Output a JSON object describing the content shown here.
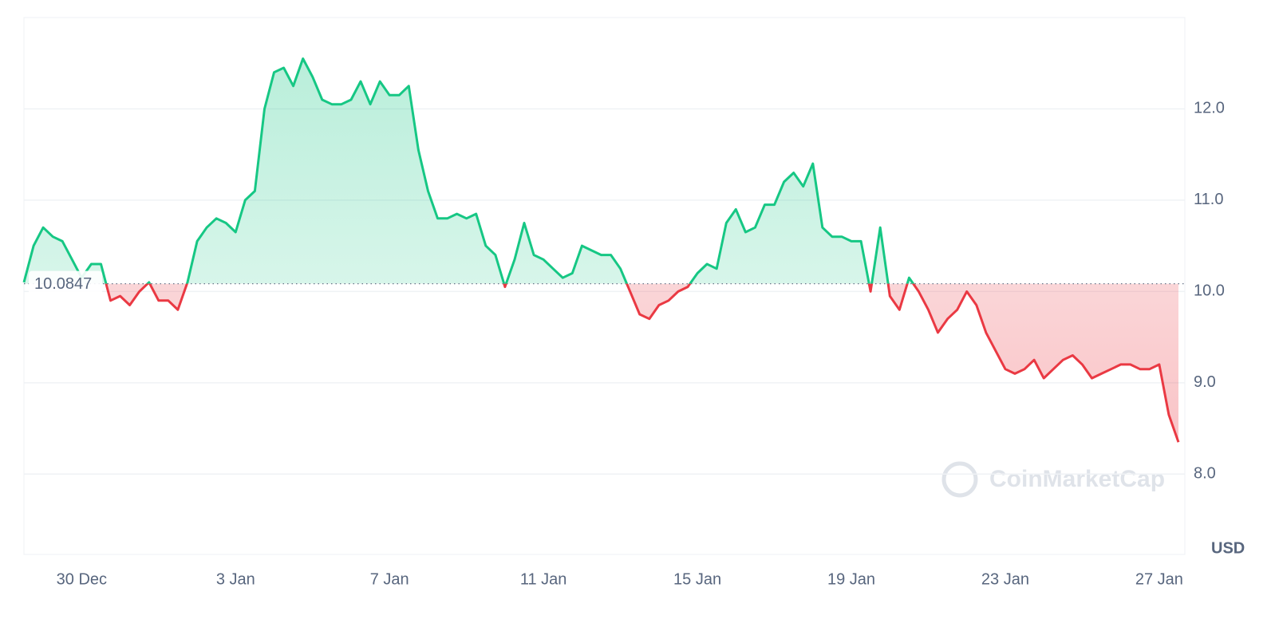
{
  "chart_data": {
    "type": "line",
    "categories": [
      null,
      null,
      null,
      null,
      null,
      null,
      "30 Dec",
      null,
      null,
      null,
      null,
      null,
      null,
      null,
      null,
      null,
      null,
      null,
      null,
      null,
      null,
      null,
      "3 Jan",
      null,
      null,
      null,
      null,
      null,
      null,
      null,
      null,
      null,
      null,
      null,
      null,
      null,
      null,
      null,
      "7 Jan",
      null,
      null,
      null,
      null,
      null,
      null,
      null,
      null,
      null,
      null,
      null,
      null,
      null,
      null,
      null,
      "11 Jan",
      null,
      null,
      null,
      null,
      null,
      null,
      null,
      null,
      null,
      null,
      null,
      null,
      null,
      null,
      null,
      "15 Jan",
      null,
      null,
      null,
      null,
      null,
      null,
      null,
      null,
      null,
      null,
      null,
      null,
      null,
      null,
      null,
      "19 Jan",
      null,
      null,
      null,
      null,
      null,
      null,
      null,
      null,
      null,
      null,
      null,
      null,
      null,
      null,
      null,
      "23 Jan",
      null,
      null,
      null,
      null,
      null,
      null,
      null,
      null,
      null,
      null,
      null,
      null,
      null,
      null,
      null,
      "27 Jan",
      null,
      null
    ],
    "values": [
      10.1,
      10.5,
      10.7,
      10.6,
      10.55,
      10.35,
      10.15,
      10.3,
      10.3,
      9.9,
      9.95,
      9.85,
      10.0,
      10.1,
      9.9,
      9.9,
      9.8,
      10.1,
      10.55,
      10.7,
      10.8,
      10.75,
      10.65,
      11.0,
      11.1,
      12.0,
      12.4,
      12.45,
      12.25,
      12.55,
      12.35,
      12.1,
      12.05,
      12.05,
      12.1,
      12.3,
      12.05,
      12.3,
      12.15,
      12.15,
      12.25,
      11.55,
      11.1,
      10.8,
      10.8,
      10.85,
      10.8,
      10.85,
      10.5,
      10.4,
      10.05,
      10.35,
      10.75,
      10.4,
      10.35,
      10.25,
      10.15,
      10.2,
      10.5,
      10.45,
      10.4,
      10.4,
      10.25,
      10.0,
      9.75,
      9.7,
      9.85,
      9.9,
      10.0,
      10.05,
      10.2,
      10.3,
      10.25,
      10.75,
      10.9,
      10.65,
      10.7,
      10.95,
      10.95,
      11.2,
      11.3,
      11.15,
      11.4,
      10.7,
      10.6,
      10.6,
      10.55,
      10.55,
      10.0,
      10.7,
      9.95,
      9.8,
      10.15,
      10.0,
      9.8,
      9.55,
      9.7,
      9.8,
      10.0,
      9.85,
      9.55,
      9.35,
      9.15,
      9.1,
      9.15,
      9.25,
      9.05,
      9.15,
      9.25,
      9.3,
      9.2,
      9.05,
      9.1,
      9.15,
      9.2,
      9.2,
      9.15,
      9.15,
      9.2,
      8.65,
      8.35
    ],
    "baseline": 10.0847,
    "up_color": "#16c784",
    "down_color": "#ea3943",
    "ylim": [
      7.12,
      13.0
    ],
    "yticks": [
      {
        "value": 8,
        "label": "8.0"
      },
      {
        "value": 9,
        "label": "9.0"
      },
      {
        "value": 10,
        "label": "10.0"
      },
      {
        "value": 11,
        "label": "11.0"
      },
      {
        "value": 12,
        "label": "12.0"
      }
    ],
    "grid": true,
    "unit": "USD",
    "watermark": "CoinMarketCap"
  }
}
